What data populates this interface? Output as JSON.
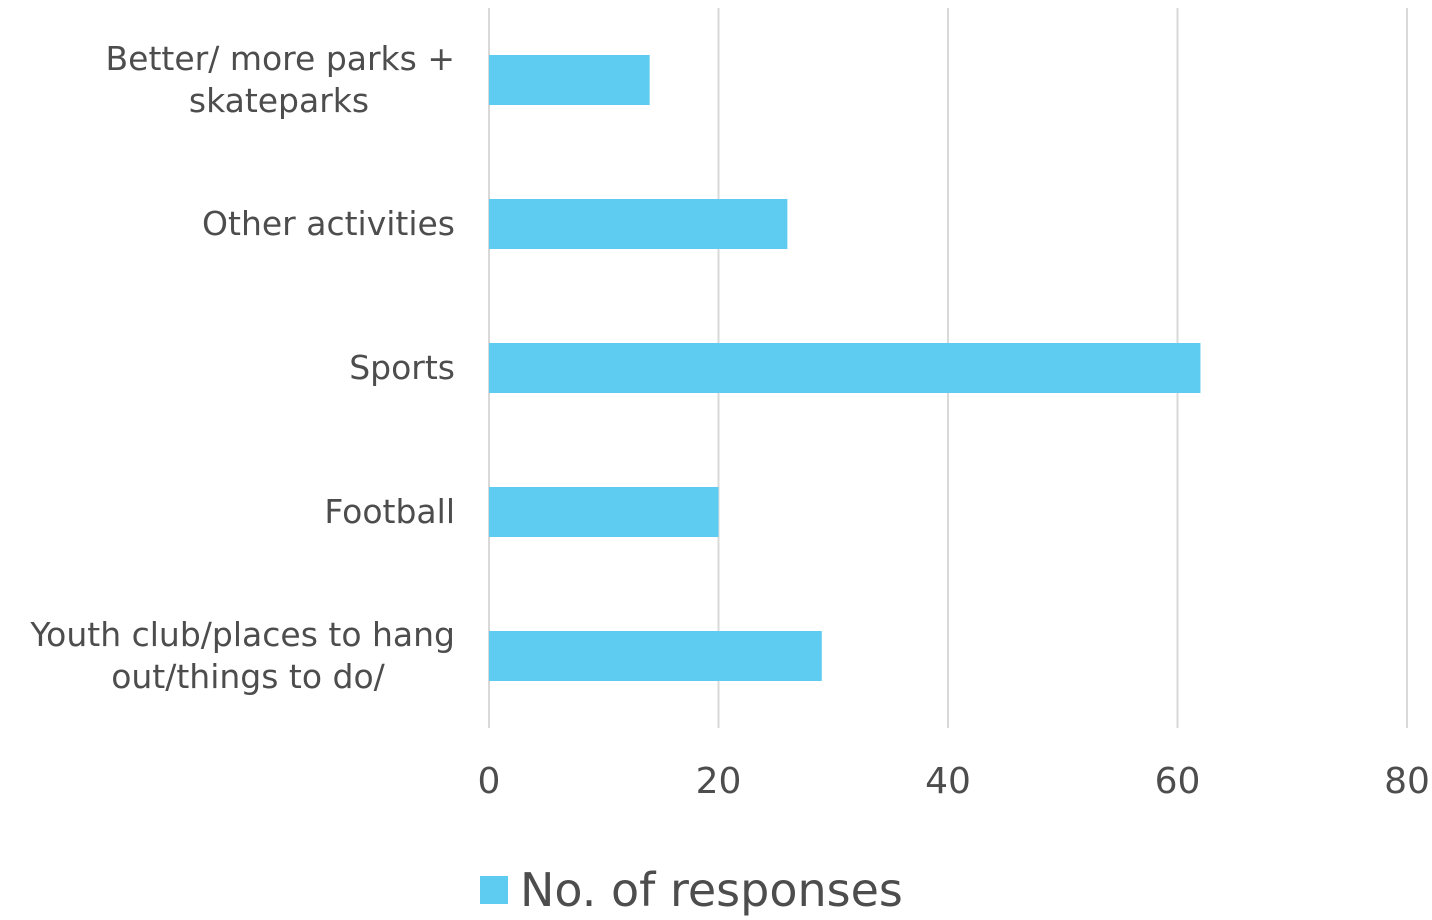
{
  "chart_data": {
    "type": "bar",
    "orientation": "horizontal",
    "categories": [
      [
        "Better/ more parks +",
        "skateparks"
      ],
      [
        "Other activities"
      ],
      [
        "Sports"
      ],
      [
        "Football"
      ],
      [
        "Youth club/places to hang",
        "out/things to do/"
      ]
    ],
    "series": [
      {
        "name": "No. of responses",
        "values": [
          14,
          26,
          62,
          20,
          29
        ],
        "color": "#5ecbf0"
      }
    ],
    "xlim": [
      0,
      80
    ],
    "xticks": [
      0,
      20,
      40,
      60,
      80
    ],
    "xlabel": "",
    "ylabel": "",
    "grid": "vertical",
    "legend_position": "bottom"
  }
}
